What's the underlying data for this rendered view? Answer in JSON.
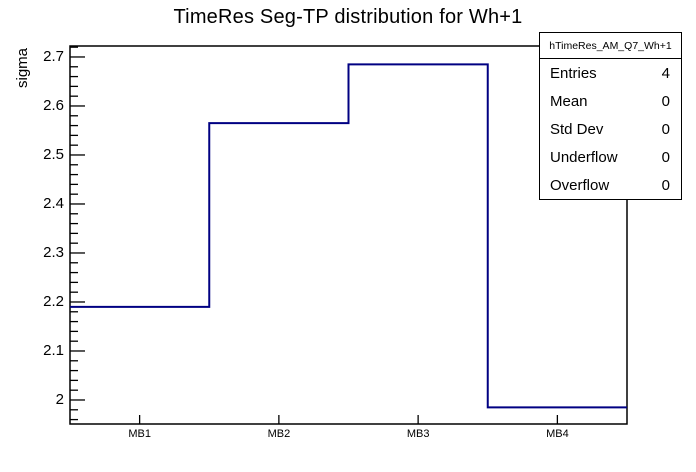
{
  "chart_data": {
    "type": "step-histogram",
    "title": "TimeRes Seg-TP distribution for Wh+1",
    "ylabel": "sigma",
    "xlabel": "",
    "categories": [
      "MB1",
      "MB2",
      "MB3",
      "MB4"
    ],
    "values": [
      2.19,
      2.565,
      2.685,
      1.985
    ],
    "ylim": [
      1.951,
      2.7224
    ],
    "y_major_ticks": [
      2,
      2.1,
      2.2,
      2.3,
      2.4,
      2.5,
      2.6,
      2.7
    ],
    "y_major_tick_labels": [
      "2",
      "2.1",
      "2.2",
      "2.3",
      "2.4",
      "2.5",
      "2.6",
      "2.7"
    ],
    "y_minor_tick_step": 0.02,
    "grid": false,
    "legend_position": "top-right stats box",
    "line_color": "#000082",
    "frame_color": "#000000",
    "text_color": "#000000",
    "background_color": "#ffffff"
  },
  "stats_box": {
    "title": "hTimeRes_AM_Q7_Wh+1",
    "rows": [
      {
        "label": "Entries",
        "value": "4"
      },
      {
        "label": "Mean",
        "value": "0"
      },
      {
        "label": "Std Dev",
        "value": "0"
      },
      {
        "label": "Underflow",
        "value": "0"
      },
      {
        "label": "Overflow",
        "value": "0"
      }
    ]
  }
}
